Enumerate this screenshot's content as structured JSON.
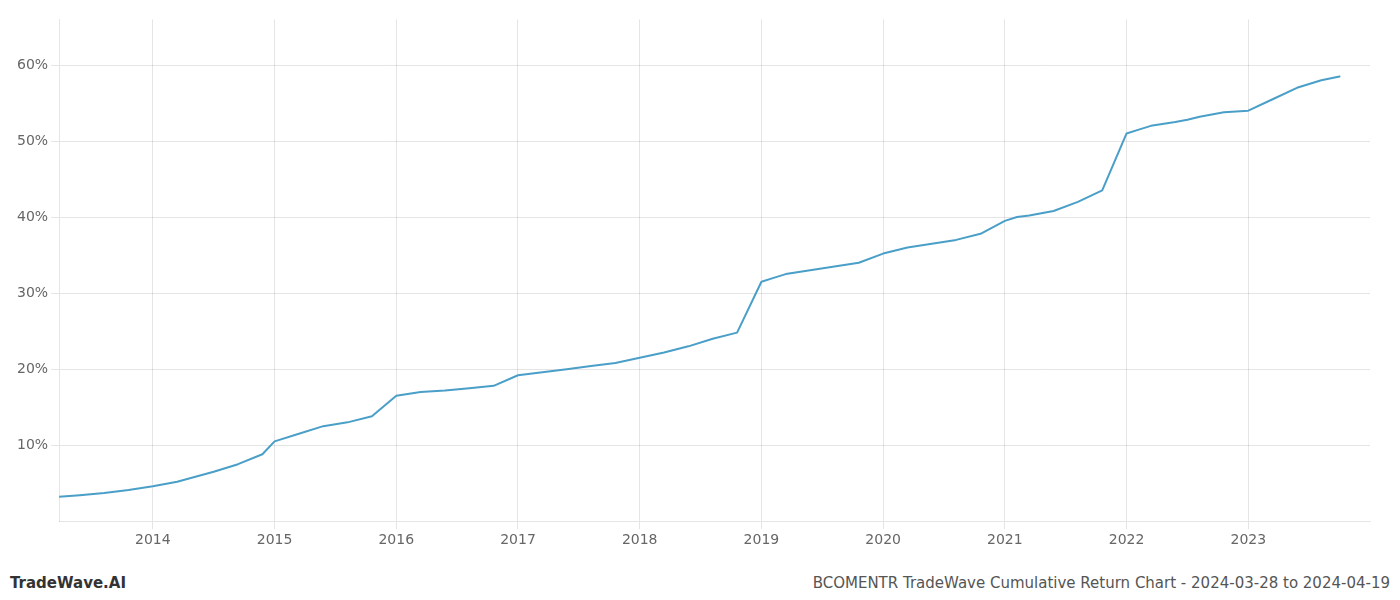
{
  "chart_data": {
    "type": "line",
    "title": "BCOMENTR TradeWave Cumulative Return Chart - 2024-03-28 to 2024-04-19",
    "annotations": [
      "TradeWave.AI"
    ],
    "x": [
      2013.23,
      2013.4,
      2013.6,
      2013.8,
      2014.0,
      2014.2,
      2014.5,
      2014.7,
      2014.9,
      2015.0,
      2015.2,
      2015.4,
      2015.6,
      2015.8,
      2016.0,
      2016.2,
      2016.4,
      2016.6,
      2016.8,
      2017.0,
      2017.2,
      2017.4,
      2017.6,
      2017.8,
      2018.0,
      2018.2,
      2018.4,
      2018.6,
      2018.8,
      2019.0,
      2019.1,
      2019.2,
      2019.4,
      2019.6,
      2019.8,
      2020.0,
      2020.2,
      2020.4,
      2020.6,
      2020.8,
      2021.0,
      2021.1,
      2021.2,
      2021.4,
      2021.6,
      2021.8,
      2022.0,
      2022.1,
      2022.2,
      2022.4,
      2022.5,
      2022.6,
      2022.8,
      2023.0,
      2023.2,
      2023.4,
      2023.6,
      2023.75
    ],
    "values": [
      3.2,
      3.4,
      3.7,
      4.1,
      4.6,
      5.2,
      6.5,
      7.5,
      8.8,
      10.5,
      11.5,
      12.5,
      13.0,
      13.8,
      16.5,
      17.0,
      17.2,
      17.5,
      17.8,
      19.2,
      19.6,
      20.0,
      20.4,
      20.8,
      21.5,
      22.2,
      23.0,
      24.0,
      24.8,
      31.5,
      32.0,
      32.5,
      33.0,
      33.5,
      34.0,
      35.2,
      36.0,
      36.5,
      37.0,
      37.8,
      39.5,
      40.0,
      40.2,
      40.8,
      42.0,
      43.5,
      51.0,
      51.5,
      52.0,
      52.5,
      52.8,
      53.2,
      53.8,
      54.0,
      55.5,
      57.0,
      58.0,
      58.5
    ],
    "color": "#4a9fc8",
    "xlim": [
      2013.23,
      2024.0
    ],
    "xticks": [
      2014,
      2015,
      2016,
      2017,
      2018,
      2019,
      2020,
      2021,
      2022,
      2023
    ],
    "ylim": [
      0,
      66
    ],
    "yticks": [
      {
        "value": 10,
        "label": "10%"
      },
      {
        "value": 20,
        "label": "20%"
      },
      {
        "value": 30,
        "label": "30%"
      },
      {
        "value": 40,
        "label": "40%"
      },
      {
        "value": 50,
        "label": "50%"
      },
      {
        "value": 60,
        "label": "60%"
      }
    ],
    "grid": true
  }
}
